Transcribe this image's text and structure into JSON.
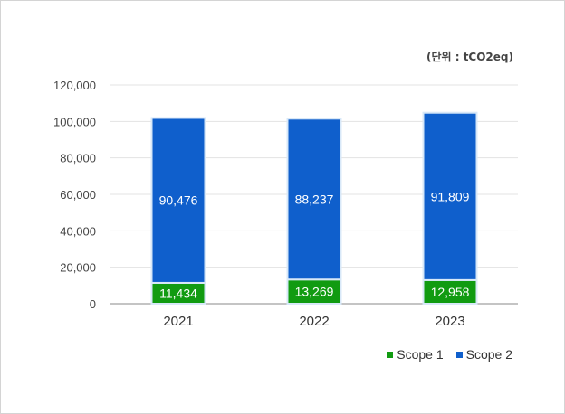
{
  "unit_label": "(단위 : tCO2eq)",
  "colors": {
    "scope1": "#119b11",
    "scope2": "#0f5fcc",
    "bar_outline": "#d8e8f8",
    "grid": "#e3e3e3",
    "axis": "#8a8a8a"
  },
  "chart_data": {
    "type": "bar",
    "stacked": true,
    "categories": [
      "2021",
      "2022",
      "2023"
    ],
    "series": [
      {
        "name": "Scope 1",
        "values": [
          11434,
          13269,
          12958
        ],
        "value_labels": [
          "11,434",
          "13,269",
          "12,958"
        ]
      },
      {
        "name": "Scope 2",
        "values": [
          90476,
          88237,
          91809
        ],
        "value_labels": [
          "90,476",
          "88,237",
          "91,809"
        ]
      }
    ],
    "ylim": [
      0,
      120000
    ],
    "yticks": [
      0,
      20000,
      40000,
      60000,
      80000,
      100000,
      120000
    ],
    "ytick_labels": [
      "0",
      "20,000",
      "40,000",
      "60,000",
      "80,000",
      "100,000",
      "120,000"
    ],
    "grid": true,
    "legend_position": "bottom-right"
  }
}
